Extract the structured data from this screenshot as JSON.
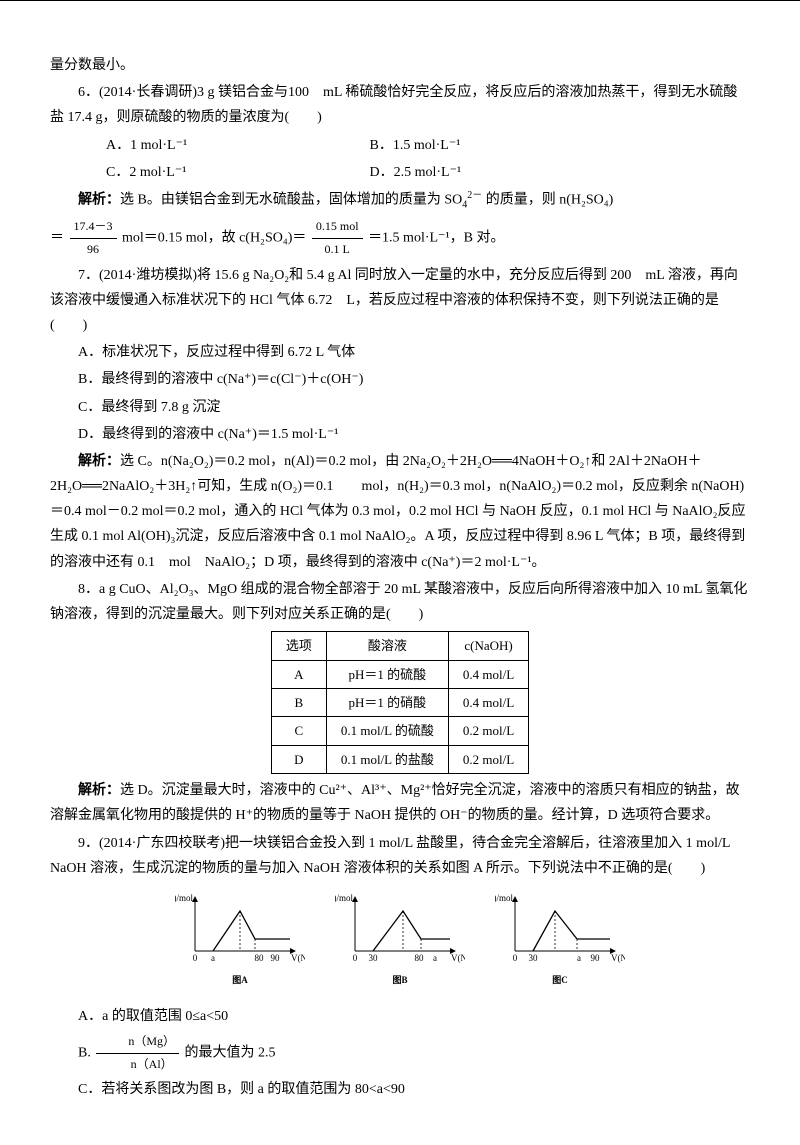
{
  "lead_in": "量分数最小。",
  "q6": {
    "stem": "6．(2014·长春调研)3 g 镁铝合金与100　mL 稀硫酸恰好完全反应，将反应后的溶液加热蒸干，得到无水硫酸盐 17.4 g，则原硫酸的物质的量浓度为(　　)",
    "optA": "A．1 mol·L⁻¹",
    "optB": "B．1.5 mol·L⁻¹",
    "optC": "C．2 mol·L⁻¹",
    "optD": "D．2.5 mol·L⁻¹",
    "ans_label": "解析：",
    "ans_head": "选 B。由镁铝合金到无水硫酸盐，固体增加的质量为 SO",
    "ans_head2": " 的质量，则 n(H₂SO₄)",
    "eq_pre": "＝",
    "frac1_num": "17.4－3",
    "frac1_den": "96",
    "eq_mid": " mol＝0.15 mol，故 c(H₂SO₄)＝",
    "frac2_num": "0.15 mol",
    "frac2_den": "0.1 L",
    "eq_end": "＝1.5 mol·L⁻¹，B 对。"
  },
  "q7": {
    "stem": "7．(2014·潍坊模拟)将 15.6 g Na₂O₂和 5.4 g Al 同时放入一定量的水中，充分反应后得到 200　mL 溶液，再向该溶液中缓慢通入标准状况下的 HCl 气体 6.72　L，若反应过程中溶液的体积保持不变，则下列说法正确的是(　　)",
    "optA": "A．标准状况下，反应过程中得到 6.72 L 气体",
    "optB": "B．最终得到的溶液中 c(Na⁺)＝c(Cl⁻)＋c(OH⁻)",
    "optC": "C．最终得到 7.8 g 沉淀",
    "optD": "D．最终得到的溶液中 c(Na⁺)＝1.5 mol·L⁻¹",
    "ans_label": "解析：",
    "ans1": "选 C。n(Na₂O₂)＝0.2 mol，n(Al)＝0.2 mol，由 2Na₂O₂＋2H₂O══4NaOH＋O₂↑和 2Al＋2NaOH＋2H₂O══2NaAlO₂＋3H₂↑可知，生成 n(O₂)＝0.1　　mol，n(H₂)＝0.3 mol，n(NaAlO₂)＝0.2 mol，反应剩余 n(NaOH)＝0.4 mol－0.2 mol＝0.2 mol，通入的 HCl 气体为 0.3 mol，0.2 mol HCl 与 NaOH 反应，0.1 mol HCl 与 NaAlO₂反应生成 0.1 mol Al(OH)₃沉淀，反应后溶液中含 0.1 mol NaAlO₂。A 项，反应过程中得到 8.96 L 气体；B 项，最终得到的溶液中还有 0.1　mol　NaAlO₂；D 项，最终得到的溶液中 c(Na⁺)＝2 mol·L⁻¹。"
  },
  "q8": {
    "stem": "8．a g CuO、Al₂O₃、MgO 组成的混合物全部溶于 20 mL 某酸溶液中，反应后向所得溶液中加入 10 mL 氢氧化钠溶液，得到的沉淀量最大。则下列对应关系正确的是(　　)",
    "table": {
      "headers": [
        "选项",
        "酸溶液",
        "c(NaOH)"
      ],
      "rows": [
        [
          "A",
          "pH＝1 的硫酸",
          "0.4 mol/L"
        ],
        [
          "B",
          "pH＝1 的硝酸",
          "0.4 mol/L"
        ],
        [
          "C",
          "0.1 mol/L 的硫酸",
          "0.2 mol/L"
        ],
        [
          "D",
          "0.1 mol/L 的盐酸",
          "0.2 mol/L"
        ]
      ]
    },
    "ans_label": "解析：",
    "ans": "选 D。沉淀量最大时，溶液中的 Cu²⁺、Al³⁺、Mg²⁺恰好完全沉淀，溶液中的溶质只有相应的钠盐，故溶解金属氧化物用的酸提供的 H⁺的物质的量等于 NaOH 提供的 OH⁻的物质的量。经计算，D 选项符合要求。"
  },
  "q9": {
    "stem": "9．(2014·广东四校联考)把一块镁铝合金投入到 1 mol/L 盐酸里，待合金完全溶解后，往溶液里加入 1 mol/L NaOH 溶液，生成沉淀的物质的量与加入 NaOH 溶液体积的关系如图 A 所示。下列说法中不正确的是(　　)",
    "charts": [
      {
        "label": "图A",
        "ylabel": "n(沉淀)/mol",
        "xlabel": "V(NaOH)",
        "xticks": [
          "0",
          "a",
          "80",
          "90"
        ],
        "apex_x": 45,
        "flat_start_x": 60
      },
      {
        "label": "图B",
        "ylabel": "n(沉淀)/mol",
        "xlabel": "V(NaOH)",
        "xticks": [
          "0",
          "30",
          "80",
          "a"
        ],
        "apex_x": 48,
        "flat_start_x": 66
      },
      {
        "label": "图C",
        "ylabel": "n(沉淀)/mol",
        "xlabel": "V(NaOH)",
        "xticks": [
          "0",
          "30",
          "a",
          "90"
        ],
        "apex_x": 40,
        "flat_start_x": 62
      }
    ],
    "optA": "A．a 的取值范围 0≤a<50",
    "optB_pre": "B.",
    "optB_num": "n（Mg）",
    "optB_den": "n（Al）",
    "optB_tail": "的最大值为 2.5",
    "optC": "C．若将关系图改为图 B，则 a 的取值范围为 80<a<90"
  }
}
